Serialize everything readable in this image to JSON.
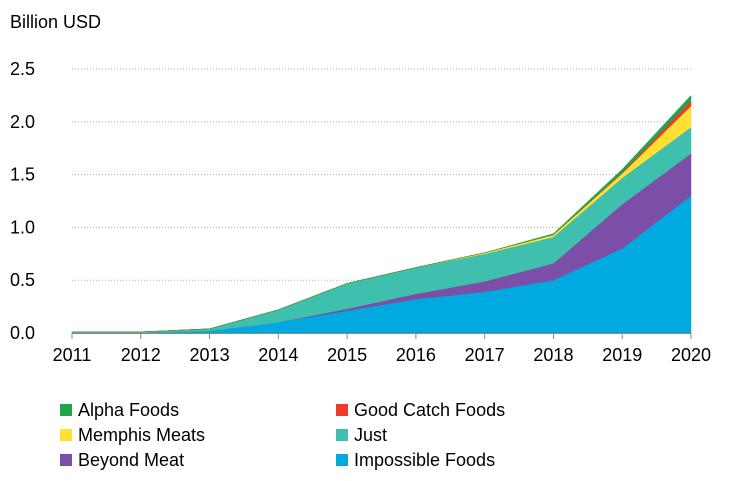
{
  "chart_data": {
    "type": "area",
    "stacked": true,
    "title": "",
    "ylabel": "Billion USD",
    "xlabel": "",
    "x": [
      "2011",
      "2012",
      "2013",
      "2014",
      "2015",
      "2016",
      "2017",
      "2018",
      "2019",
      "2020"
    ],
    "ylim": [
      0,
      2.5
    ],
    "yticks": [
      "0.0",
      "0.5",
      "1.0",
      "1.5",
      "2.0",
      "2.5"
    ],
    "grid": "horizontal-dotted",
    "legend_position": "bottom",
    "series": [
      {
        "name": "Impossible Foods",
        "color": "#00a9e0",
        "values": [
          0.0,
          0.0,
          0.02,
          0.1,
          0.21,
          0.32,
          0.39,
          0.5,
          0.8,
          1.3
        ]
      },
      {
        "name": "Beyond Meat",
        "color": "#7b4fa8",
        "values": [
          0.0,
          0.0,
          0.0,
          0.0,
          0.02,
          0.05,
          0.1,
          0.16,
          0.42,
          0.4
        ]
      },
      {
        "name": "Just",
        "color": "#3fbfad",
        "values": [
          0.01,
          0.01,
          0.02,
          0.12,
          0.24,
          0.25,
          0.26,
          0.25,
          0.25,
          0.25
        ]
      },
      {
        "name": "Memphis Meats",
        "color": "#ffe033",
        "values": [
          0.0,
          0.0,
          0.0,
          0.0,
          0.0,
          0.0,
          0.01,
          0.02,
          0.04,
          0.2
        ]
      },
      {
        "name": "Good Catch Foods",
        "color": "#ee3a2c",
        "values": [
          0.0,
          0.0,
          0.0,
          0.0,
          0.0,
          0.0,
          0.0,
          0.0,
          0.01,
          0.05
        ]
      },
      {
        "name": "Alpha Foods",
        "color": "#22a44a",
        "values": [
          0.0,
          0.0,
          0.0,
          0.0,
          0.0,
          0.0,
          0.0,
          0.01,
          0.03,
          0.05
        ]
      }
    ],
    "legend_order": [
      "Alpha Foods",
      "Good Catch Foods",
      "Memphis Meats",
      "Just",
      "Beyond Meat",
      "Impossible Foods"
    ]
  }
}
